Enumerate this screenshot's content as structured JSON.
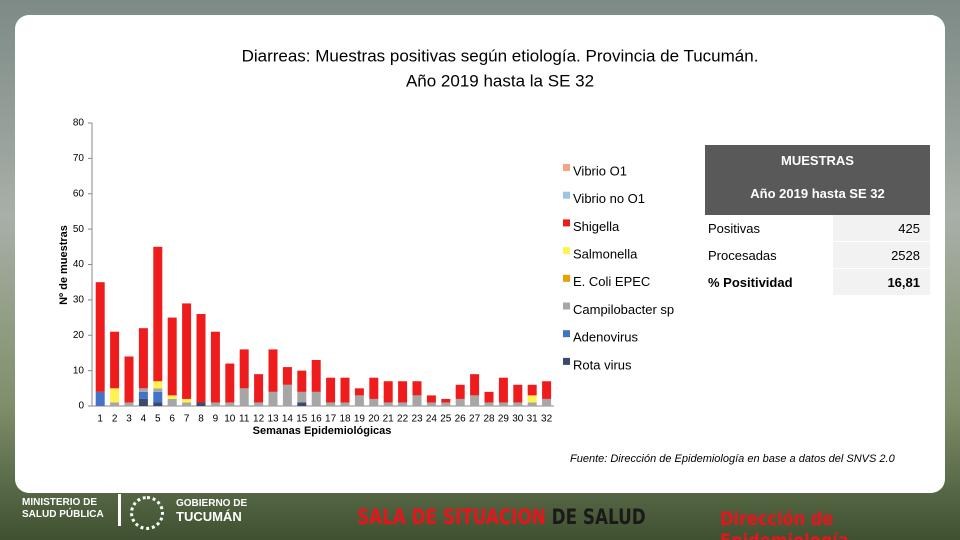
{
  "chart_data": {
    "type": "bar",
    "stacked": true,
    "title": [
      "Diarreas: Muestras positivas según etiología. Provincia de Tucumán.",
      "Año 2019 hasta la SE 32"
    ],
    "x_label": "Semanas Epidemiológicas",
    "y_label": "Nº de muestras",
    "categories": [
      "1",
      "2",
      "3",
      "4",
      "5",
      "6",
      "7",
      "8",
      "9",
      "10",
      "11",
      "12",
      "13",
      "14",
      "15",
      "16",
      "17",
      "18",
      "19",
      "20",
      "21",
      "22",
      "23",
      "24",
      "25",
      "26",
      "27",
      "28",
      "29",
      "30",
      "31",
      "32"
    ],
    "ylim": [
      0,
      80
    ],
    "yticks": [
      0,
      10,
      20,
      30,
      40,
      50,
      60,
      70,
      80
    ],
    "grid": false,
    "series": [
      {
        "name": "Vibrio O1",
        "color": "#f4a582",
        "values": [
          0,
          0,
          0,
          0,
          0,
          0,
          0,
          0,
          0,
          0,
          0,
          0,
          0,
          0,
          0,
          0,
          0,
          0,
          0,
          0,
          0,
          0,
          0,
          0,
          0,
          0,
          0,
          0,
          0,
          0,
          0,
          0
        ]
      },
      {
        "name": "Vibrio no O1",
        "color": "#9dc3e6",
        "values": [
          0,
          0,
          0,
          0,
          0,
          0,
          0,
          0,
          0,
          0,
          0,
          0,
          0,
          0,
          0,
          0,
          0,
          0,
          0,
          0,
          0,
          0,
          0,
          0,
          0,
          0,
          0,
          0,
          0,
          0,
          0,
          0
        ]
      },
      {
        "name": "Shigella",
        "color": "#ee1c1c",
        "values": [
          31,
          16,
          13,
          17,
          38,
          22,
          27,
          25,
          20,
          11,
          11,
          8,
          12,
          5,
          6,
          9,
          7,
          7,
          2,
          6,
          6,
          6,
          4,
          2,
          1,
          4,
          6,
          3,
          7,
          5,
          3,
          5
        ]
      },
      {
        "name": "Salmonella",
        "color": "#fff44f",
        "values": [
          0,
          4,
          0,
          0,
          2,
          1,
          1,
          0,
          0,
          0,
          0,
          0,
          0,
          0,
          0,
          0,
          0,
          0,
          0,
          0,
          0,
          0,
          0,
          0,
          0,
          0,
          0,
          0,
          0,
          0,
          2,
          0
        ]
      },
      {
        "name": "E. Coli EPEC",
        "color": "#e6a100",
        "values": [
          0,
          0,
          0,
          0,
          0,
          0,
          0,
          0,
          0,
          0,
          0,
          0,
          0,
          0,
          0,
          0,
          0,
          0,
          0,
          0,
          0,
          0,
          0,
          0,
          0,
          0,
          0,
          0,
          0,
          0,
          0,
          0
        ]
      },
      {
        "name": "Campilobacter sp",
        "color": "#a6a6a6",
        "values": [
          0,
          1,
          1,
          1,
          1,
          2,
          1,
          0,
          1,
          1,
          5,
          1,
          4,
          6,
          3,
          4,
          1,
          1,
          3,
          2,
          1,
          1,
          3,
          1,
          1,
          2,
          3,
          1,
          1,
          1,
          1,
          2
        ]
      },
      {
        "name": "Adenovirus",
        "color": "#4472c4",
        "values": [
          4,
          0,
          0,
          2,
          3,
          0,
          0,
          0,
          0,
          0,
          0,
          0,
          0,
          0,
          0,
          0,
          0,
          0,
          0,
          0,
          0,
          0,
          0,
          0,
          0,
          0,
          0,
          0,
          0,
          0,
          0,
          0
        ]
      },
      {
        "name": "Rota virus",
        "color": "#3b4a6b",
        "values": [
          0,
          0,
          0,
          2,
          1,
          0,
          0,
          1,
          0,
          0,
          0,
          0,
          0,
          0,
          1,
          0,
          0,
          0,
          0,
          0,
          0,
          0,
          0,
          0,
          0,
          0,
          0,
          0,
          0,
          0,
          0,
          0
        ]
      }
    ]
  },
  "table": {
    "title": "MUESTRAS",
    "subtitle": "Año 2019 hasta SE 32",
    "rows": [
      [
        "Positivas",
        425
      ],
      [
        "Procesadas",
        2528
      ],
      [
        "% Positividad",
        "16,81"
      ]
    ]
  },
  "source": "Fuente: Dirección de Epidemiología en base a datos del SNVS 2.0",
  "footer": {
    "ministry": [
      "MINISTERIO DE",
      "SALUD PÚBLICA"
    ],
    "government": [
      "GOBIERNO DE",
      "TUCUMÁN"
    ],
    "situation_room": [
      "SALA DE SITUACION",
      "DE SALUD"
    ],
    "directorate": "Dirección de Epidemiología"
  }
}
